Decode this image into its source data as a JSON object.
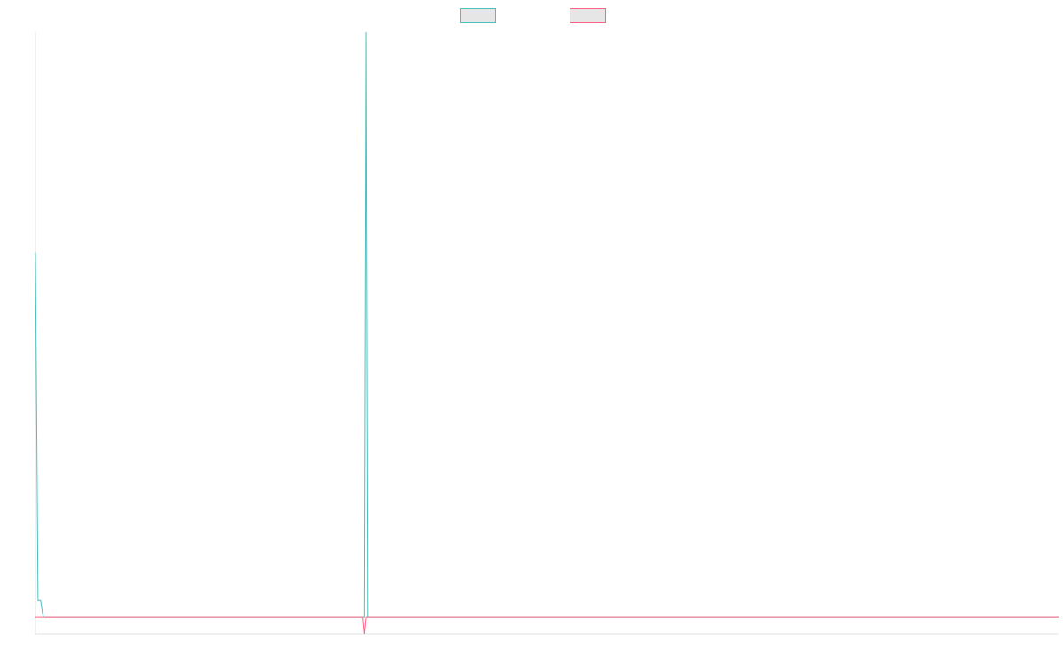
{
  "chart_data": {
    "type": "line",
    "title": "",
    "xlabel": "",
    "ylabel": "",
    "grid": false,
    "legend": {
      "placement": "top-center",
      "entries": [
        {
          "label": "",
          "color": "#4bc0c0"
        },
        {
          "label": "",
          "color": "#ff6384"
        }
      ]
    },
    "xlim": [
      0,
      200
    ],
    "ylim": [
      -1,
      35
    ],
    "x": [
      0,
      0.5,
      1,
      1.5,
      64,
      64.3,
      64.6,
      64.9,
      200
    ],
    "series": [
      {
        "color": "#4bc0c0",
        "values": [
          21.8,
          1,
          1,
          0,
          0,
          0,
          35,
          0,
          0
        ]
      },
      {
        "color": "#ff6384",
        "values": [
          0,
          0,
          0,
          0,
          0,
          -1,
          0,
          0,
          0
        ]
      }
    ]
  }
}
